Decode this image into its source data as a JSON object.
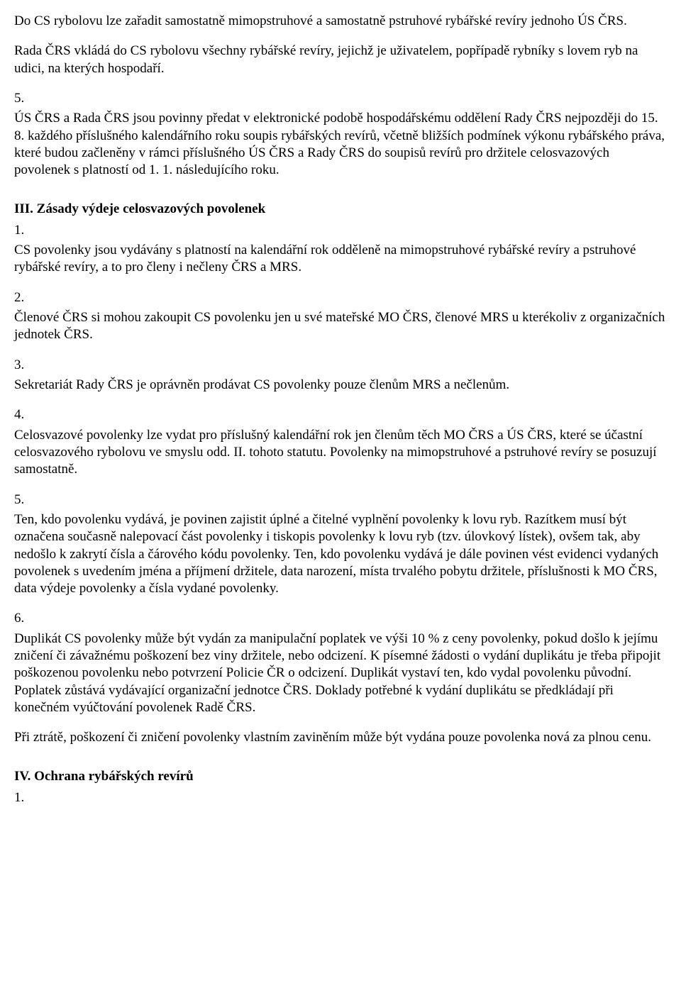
{
  "p1": "Do CS rybolovu lze zařadit samostatně mimopstruhové a samostatně pstruhové rybářské revíry jednoho ÚS ČRS.",
  "p2": "Rada ČRS vkládá do CS rybolovu všechny rybářské revíry, jejichž je uživatelem, popřípadě rybníky s lovem ryb na udici, na kterých hospodaří.",
  "n5": "5.",
  "p3": "ÚS ČRS a Rada ČRS jsou povinny předat v elektronické podobě hospodářskému oddělení Rady ČRS nejpozději do 15. 8. každého příslušného kalendářního roku soupis rybářských revírů, včetně bližších podmínek výkonu rybářského práva, které budou začleněny v rámci příslušného ÚS ČRS a Rady ČRS do soupisů revírů pro držitele celosvazových povolenek s platností od 1. 1. následujícího roku.",
  "section3_title": "III. Zásady výdeje celosvazových povolenek",
  "n1": "1.",
  "p4": "CS povolenky jsou vydávány s platností na kalendářní rok odděleně na mimopstruhové rybářské revíry a pstruhové rybářské revíry, a to pro členy i nečleny ČRS a MRS.",
  "n2": "2.",
  "p5": "Členové ČRS si mohou zakoupit CS povolenku jen u své mateřské MO ČRS, členové MRS u kterékoliv z organizačních jednotek ČRS.",
  "n3": "3.",
  "p6": "Sekretariát Rady ČRS je oprávněn prodávat CS povolenky pouze členům MRS a nečlenům.",
  "n4": "4.",
  "p7": "Celosvazové povolenky lze vydat pro příslušný kalendářní rok jen členům těch MO ČRS a ÚS ČRS, které se účastní celosvazového rybolovu ve smyslu odd. II. tohoto statutu. Povolenky na mimopstruhové a pstruhové revíry se posuzují samostatně.",
  "n5b": "5.",
  "p8": "Ten, kdo povolenku vydává, je povinen zajistit úplné a čitelné vyplnění povolenky k lovu ryb. Razítkem musí být označena současně nalepovací část povolenky i tiskopis povolenky k lovu ryb (tzv. úlovkový lístek), ovšem tak, aby nedošlo k zakrytí čísla a čárového kódu povolenky. Ten, kdo povolenku vydává je dále povinen vést evidenci vydaných povolenek s uvedením jména a příjmení držitele, data narození, místa trvalého pobytu držitele, příslušnosti k MO ČRS, data výdeje povolenky a čísla vydané povolenky.",
  "n6": "6.",
  "p9": "Duplikát CS povolenky může být vydán za manipulační poplatek ve výši 10 % z ceny povolenky, pokud došlo k jejímu zničení či závažnému poškození bez viny držitele, nebo odcizení. K písemné žádosti o vydání duplikátu je třeba připojit poškozenou povolenku nebo potvrzení Policie ČR o odcizení. Duplikát vystaví ten, kdo vydal povolenku původní. Poplatek zůstává vydávající organizační jednotce ČRS. Doklady potřebné k vydání duplikátu se předkládají při konečném vyúčtování povolenek Radě ČRS.",
  "p10": "Při ztrátě, poškození či zničení povolenky vlastním zaviněním může být vydána pouze povolenka nová za plnou cenu.",
  "section4_title": "IV. Ochrana rybářských revírů",
  "n1b": "1."
}
